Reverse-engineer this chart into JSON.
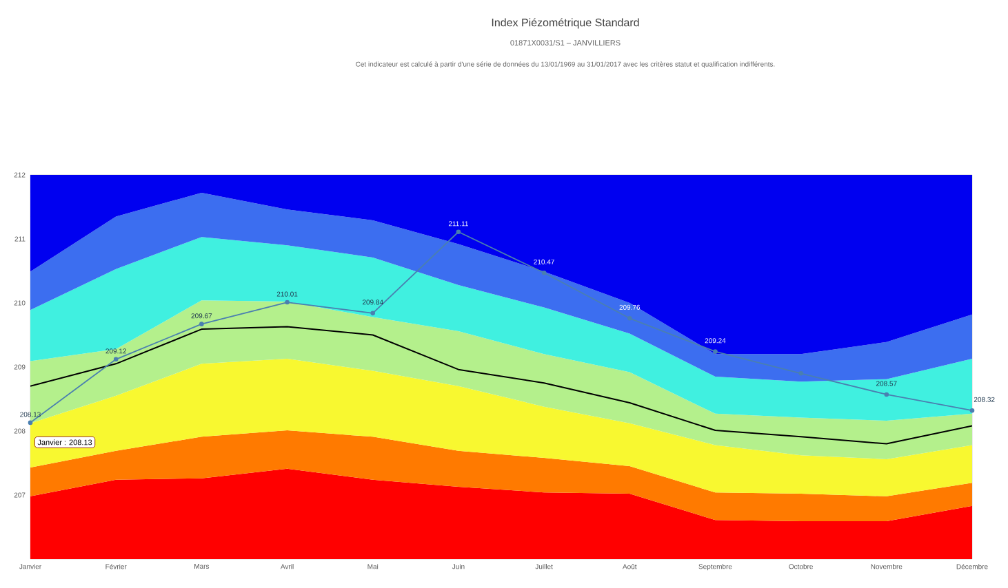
{
  "chart_data": {
    "type": "area",
    "title": "Index Piézométrique Standard",
    "subtitle": "01871X0031/S1 – JANVILLIERS",
    "annotations": [
      "Cet indicateur est calculé à partir d'une série de données du 13/01/1969 au 31/01/2017 avec les critères statut et qualification indifférents.",
      {
        "text": "Janvier : 208.13",
        "x": "Janvier",
        "y": 208.13
      }
    ],
    "categories": [
      "Janvier",
      "Février",
      "Mars",
      "Avril",
      "Mai",
      "Juin",
      "Juillet",
      "Août",
      "Septembre",
      "Octobre",
      "Novembre",
      "Décembre"
    ],
    "ylim": [
      206,
      212
    ],
    "yticks": [
      207,
      208,
      209,
      210,
      211,
      212
    ],
    "series": [
      {
        "color": "#ff0000",
        "values": [
          206.98,
          207.24,
          207.26,
          207.41,
          207.24,
          207.13,
          207.04,
          207.02,
          206.61,
          206.59,
          206.59,
          206.83
        ]
      },
      {
        "color": "#ff7a00",
        "values": [
          207.43,
          207.69,
          207.91,
          208.01,
          207.91,
          207.69,
          207.58,
          207.45,
          207.04,
          207.02,
          206.98,
          207.19
        ]
      },
      {
        "color": "#f8f830",
        "values": [
          208.12,
          208.55,
          209.05,
          209.13,
          208.94,
          208.7,
          208.38,
          208.12,
          207.78,
          207.62,
          207.56,
          207.78
        ]
      },
      {
        "color": "#b4f08c",
        "values": [
          209.09,
          209.28,
          210.04,
          210.02,
          209.78,
          209.56,
          209.2,
          208.92,
          208.27,
          208.21,
          208.16,
          208.27
        ]
      },
      {
        "color": "#40f0e0",
        "values": [
          209.89,
          210.53,
          211.03,
          210.9,
          210.71,
          210.28,
          209.93,
          209.52,
          208.85,
          208.77,
          208.81,
          209.13
        ]
      },
      {
        "color": "#3c6ef0",
        "values": [
          210.49,
          211.35,
          211.72,
          211.46,
          211.29,
          210.92,
          210.49,
          210.0,
          209.2,
          209.2,
          209.39,
          209.82
        ]
      },
      {
        "color": "#0000f0",
        "values": [
          212,
          212,
          212,
          212,
          212,
          212,
          212,
          212,
          212,
          212,
          212,
          212
        ]
      },
      {
        "type": "line",
        "color": "#000000",
        "values": [
          208.7,
          209.05,
          209.59,
          209.63,
          209.5,
          208.96,
          208.75,
          208.44,
          208.01,
          207.91,
          207.8,
          208.08
        ]
      },
      {
        "type": "line",
        "color": "#4a7fb0",
        "marker": "circle",
        "values": [
          208.13,
          209.12,
          209.67,
          210.01,
          209.84,
          211.11,
          210.47,
          209.76,
          209.24,
          208.9,
          208.57,
          208.32
        ],
        "value_labels": [
          "208.13",
          "209.12",
          "209.67",
          "210.01",
          "209.84",
          "211.11",
          "210.47",
          "209.76",
          "209.24",
          null,
          "208.57",
          "208.32"
        ]
      }
    ]
  }
}
